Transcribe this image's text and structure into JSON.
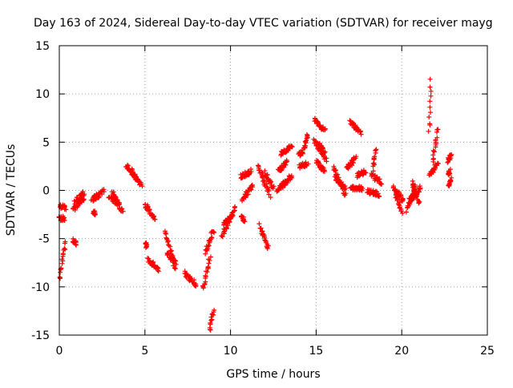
{
  "chart_data": {
    "type": "scatter",
    "title": "Day 163 of 2024, Sidereal Day-to-day VTEC variation (SDTVAR) for receiver mayg",
    "xlabel": "GPS time / hours",
    "ylabel": "SDTVAR / TECUs",
    "xlim": [
      0,
      25
    ],
    "ylim": [
      -15,
      15
    ],
    "xticks": [
      0,
      5,
      10,
      15,
      20,
      25
    ],
    "yticks": [
      -15,
      -10,
      -5,
      0,
      5,
      10,
      15
    ],
    "grid": true,
    "marker": "+",
    "color": "#ff0000",
    "segments": [
      {
        "x0": 0.0,
        "x1": 0.35,
        "y0": -9.2,
        "y1": -5.5
      },
      {
        "x0": 0.0,
        "x1": 0.3,
        "y0": -2.8,
        "y1": -3.0
      },
      {
        "x0": 0.05,
        "x1": 0.35,
        "y0": -1.6,
        "y1": -1.8
      },
      {
        "x0": 0.8,
        "x1": 1.0,
        "y0": -5.2,
        "y1": -5.5
      },
      {
        "x0": 0.8,
        "x1": 1.5,
        "y0": -2.0,
        "y1": -0.6
      },
      {
        "x0": 0.9,
        "x1": 1.4,
        "y0": -1.2,
        "y1": -0.3
      },
      {
        "x0": 1.9,
        "x1": 2.6,
        "y0": -1.0,
        "y1": -0.1
      },
      {
        "x0": 2.0,
        "x1": 2.1,
        "y0": -2.4,
        "y1": -2.3
      },
      {
        "x0": 2.9,
        "x1": 3.5,
        "y0": -0.5,
        "y1": -1.5
      },
      {
        "x0": 3.1,
        "x1": 3.7,
        "y0": -0.2,
        "y1": -2.3
      },
      {
        "x0": 3.9,
        "x1": 4.6,
        "y0": 2.6,
        "y1": 1.2
      },
      {
        "x0": 4.2,
        "x1": 4.8,
        "y0": 2.0,
        "y1": 0.5
      },
      {
        "x0": 5.0,
        "x1": 5.6,
        "y0": -1.4,
        "y1": -3.0
      },
      {
        "x0": 5.2,
        "x1": 5.8,
        "y0": -7.2,
        "y1": -8.2
      },
      {
        "x0": 5.05,
        "x1": 5.1,
        "y0": -5.5,
        "y1": -5.8
      },
      {
        "x0": 6.2,
        "x1": 6.8,
        "y0": -4.3,
        "y1": -8.2
      },
      {
        "x0": 6.3,
        "x1": 6.8,
        "y0": -6.5,
        "y1": -7.5
      },
      {
        "x0": 7.3,
        "x1": 8.0,
        "y0": -8.6,
        "y1": -9.8
      },
      {
        "x0": 8.4,
        "x1": 8.8,
        "y0": -10.3,
        "y1": -7.0
      },
      {
        "x0": 8.5,
        "x1": 9.0,
        "y0": -6.5,
        "y1": -4.2
      },
      {
        "x0": 8.8,
        "x1": 9.0,
        "y0": -14.5,
        "y1": -12.3
      },
      {
        "x0": 9.5,
        "x1": 10.3,
        "y0": -4.8,
        "y1": -1.8
      },
      {
        "x0": 9.6,
        "x1": 10.1,
        "y0": -3.5,
        "y1": -2.5
      },
      {
        "x0": 10.6,
        "x1": 10.8,
        "y0": -2.8,
        "y1": -3.0
      },
      {
        "x0": 10.6,
        "x1": 11.2,
        "y0": 1.4,
        "y1": 2.0
      },
      {
        "x0": 10.7,
        "x1": 11.3,
        "y0": -0.9,
        "y1": 0.5
      },
      {
        "x0": 11.7,
        "x1": 12.2,
        "y0": -3.6,
        "y1": -6.1
      },
      {
        "x0": 11.6,
        "x1": 12.3,
        "y0": 2.6,
        "y1": -0.5
      },
      {
        "x0": 12.0,
        "x1": 12.5,
        "y0": 1.8,
        "y1": 0.3
      },
      {
        "x0": 12.7,
        "x1": 13.2,
        "y0": 0.0,
        "y1": 0.8
      },
      {
        "x0": 12.8,
        "x1": 13.3,
        "y0": 2.0,
        "y1": 3.0
      },
      {
        "x0": 12.9,
        "x1": 13.6,
        "y0": 3.8,
        "y1": 4.5
      },
      {
        "x0": 13.0,
        "x1": 13.6,
        "y0": 0.5,
        "y1": 1.5
      },
      {
        "x0": 14.0,
        "x1": 14.5,
        "y0": 2.4,
        "y1": 2.8
      },
      {
        "x0": 14.0,
        "x1": 14.2,
        "y0": 3.7,
        "y1": 4.0
      },
      {
        "x0": 14.3,
        "x1": 14.5,
        "y0": 4.2,
        "y1": 5.9
      },
      {
        "x0": 14.9,
        "x1": 15.5,
        "y0": 7.3,
        "y1": 6.2
      },
      {
        "x0": 14.9,
        "x1": 15.6,
        "y0": 5.2,
        "y1": 3.2
      },
      {
        "x0": 15.0,
        "x1": 15.5,
        "y0": 3.0,
        "y1": 2.0
      },
      {
        "x0": 15.1,
        "x1": 15.5,
        "y0": 4.8,
        "y1": 4.0
      },
      {
        "x0": 16.0,
        "x1": 16.7,
        "y0": 2.5,
        "y1": -0.5
      },
      {
        "x0": 16.1,
        "x1": 16.7,
        "y0": 1.3,
        "y1": 0.2
      },
      {
        "x0": 16.8,
        "x1": 17.3,
        "y0": 2.3,
        "y1": 3.3
      },
      {
        "x0": 17.0,
        "x1": 17.6,
        "y0": 7.1,
        "y1": 6.0
      },
      {
        "x0": 17.0,
        "x1": 17.7,
        "y0": 0.3,
        "y1": 0.2
      },
      {
        "x0": 17.4,
        "x1": 17.9,
        "y0": 1.5,
        "y1": 2.0
      },
      {
        "x0": 18.3,
        "x1": 18.5,
        "y0": 2.2,
        "y1": 4.4
      },
      {
        "x0": 18.0,
        "x1": 18.7,
        "y0": -0.1,
        "y1": -0.4
      },
      {
        "x0": 18.2,
        "x1": 18.8,
        "y0": 1.6,
        "y1": 0.8
      },
      {
        "x0": 19.5,
        "x1": 20.0,
        "y0": 0.5,
        "y1": -2.4
      },
      {
        "x0": 19.6,
        "x1": 20.1,
        "y0": 0.0,
        "y1": -1.0
      },
      {
        "x0": 20.3,
        "x1": 20.8,
        "y0": -2.0,
        "y1": 0.6
      },
      {
        "x0": 20.5,
        "x1": 21.1,
        "y0": -1.0,
        "y1": 0.3
      },
      {
        "x0": 20.6,
        "x1": 21.0,
        "y0": 0.8,
        "y1": -1.2
      },
      {
        "x0": 21.6,
        "x1": 21.7,
        "y0": 6.0,
        "y1": 11.4
      },
      {
        "x0": 21.6,
        "x1": 22.1,
        "y0": 1.5,
        "y1": 2.8
      },
      {
        "x0": 21.8,
        "x1": 22.1,
        "y0": 3.0,
        "y1": 6.3
      },
      {
        "x0": 22.7,
        "x1": 22.9,
        "y0": 0.4,
        "y1": 1.2
      },
      {
        "x0": 22.7,
        "x1": 22.9,
        "y0": 3.0,
        "y1": 3.7
      },
      {
        "x0": 22.7,
        "x1": 22.8,
        "y0": 1.8,
        "y1": 2.0
      }
    ]
  }
}
